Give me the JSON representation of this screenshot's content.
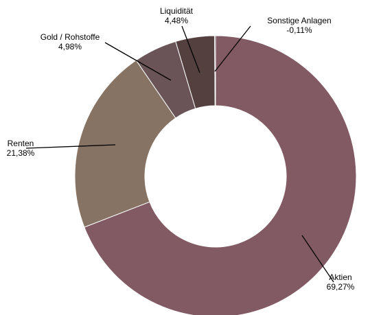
{
  "chart_data": {
    "type": "pie",
    "donut": true,
    "categories": [
      "Aktien",
      "Renten",
      "Gold / Rohstoffe",
      "Liquidität",
      "Sonstige Anlagen"
    ],
    "values": [
      69.27,
      21.38,
      4.98,
      4.48,
      -0.11
    ],
    "value_labels": [
      "69,27%",
      "21,38%",
      "4,98%",
      "4,48%",
      "-0,11%"
    ],
    "colors": [
      "#825a63",
      "#867364",
      "#6a5458",
      "#54403f",
      "#3a2c2c"
    ],
    "title": "",
    "legend": "none"
  }
}
